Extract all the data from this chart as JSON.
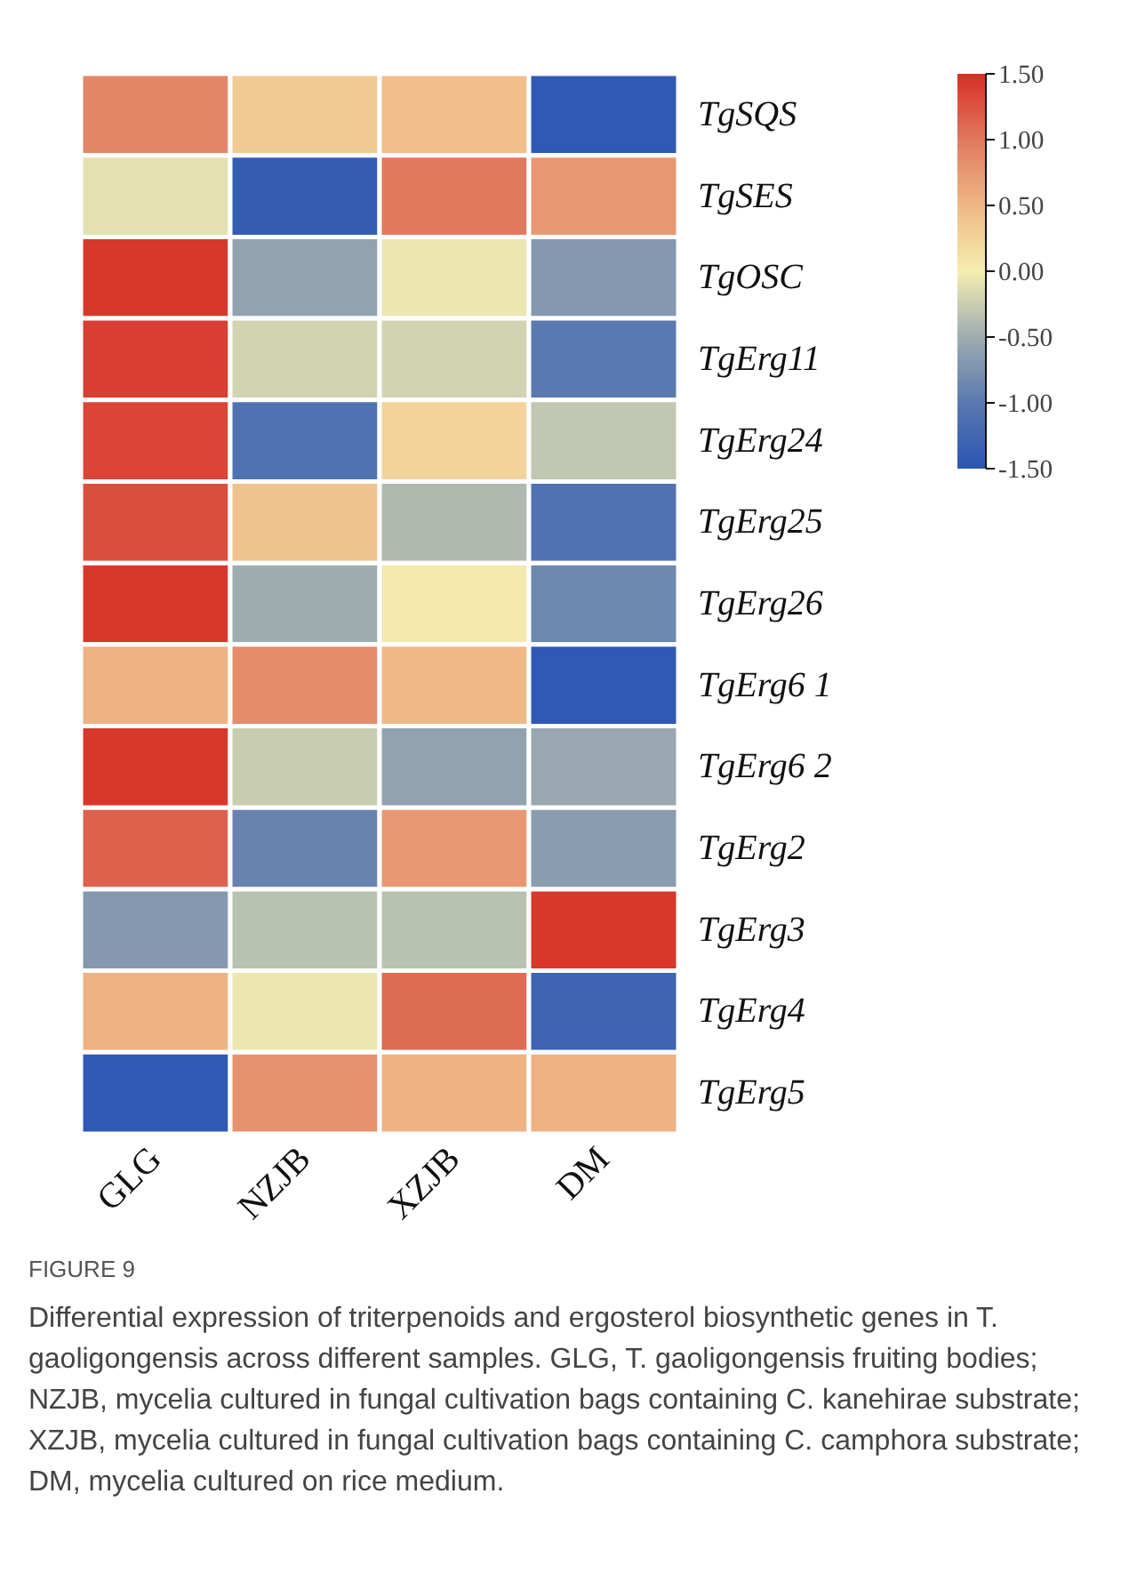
{
  "chart_data": {
    "type": "heatmap",
    "categories": [
      "GLG",
      "NZJB",
      "XZJB",
      "DM"
    ],
    "y_categories": [
      "TgSQS",
      "TgSES",
      "TgOSC",
      "TgErg11",
      "TgErg24",
      "TgErg25",
      "TgErg26",
      "TgErg6 1",
      "TgErg6 2",
      "TgErg2",
      "TgErg3",
      "TgErg4",
      "TgErg5"
    ],
    "cells": [
      [
        0.9,
        0.35,
        0.45,
        -1.45
      ],
      [
        -0.1,
        -1.4,
        1.0,
        0.75
      ],
      [
        1.45,
        -0.6,
        -0.05,
        -0.7
      ],
      [
        1.4,
        -0.2,
        -0.2,
        -1.0
      ],
      [
        1.35,
        -1.1,
        0.25,
        -0.3
      ],
      [
        1.3,
        0.4,
        -0.4,
        -1.1
      ],
      [
        1.45,
        -0.5,
        0.05,
        -0.85
      ],
      [
        0.55,
        0.85,
        0.5,
        -1.45
      ],
      [
        1.45,
        -0.25,
        -0.6,
        -0.55
      ],
      [
        1.15,
        -0.9,
        0.75,
        -0.65
      ],
      [
        -0.7,
        -0.35,
        -0.35,
        1.45
      ],
      [
        0.55,
        -0.05,
        1.1,
        -1.3
      ],
      [
        -1.45,
        0.8,
        0.55,
        0.55
      ]
    ],
    "clim": [
      -1.5,
      1.5
    ],
    "cticks": [
      {
        "value": 1.5,
        "label": "1.50"
      },
      {
        "value": 1.0,
        "label": "1.00"
      },
      {
        "value": 0.5,
        "label": "0.50"
      },
      {
        "value": 0.0,
        "label": "0.00"
      },
      {
        "value": -0.5,
        "label": "-0.50"
      },
      {
        "value": -1.0,
        "label": "-1.00"
      },
      {
        "value": -1.5,
        "label": "-1.50"
      }
    ],
    "annotations": [
      "FIGURE 9",
      "Differential expression of triterpenoids and ergosterol biosynthetic genes in T. gaoligongensis across different samples. GLG, T. gaoligongensis fruiting bodies; NZJB, mycelia cultured in fungal cultivation bags containing C. kanehirae substrate; XZJB, mycelia cultured in fungal cultivation bags containing C. camphora substrate; DM, mycelia cultured on rice medium."
    ]
  }
}
